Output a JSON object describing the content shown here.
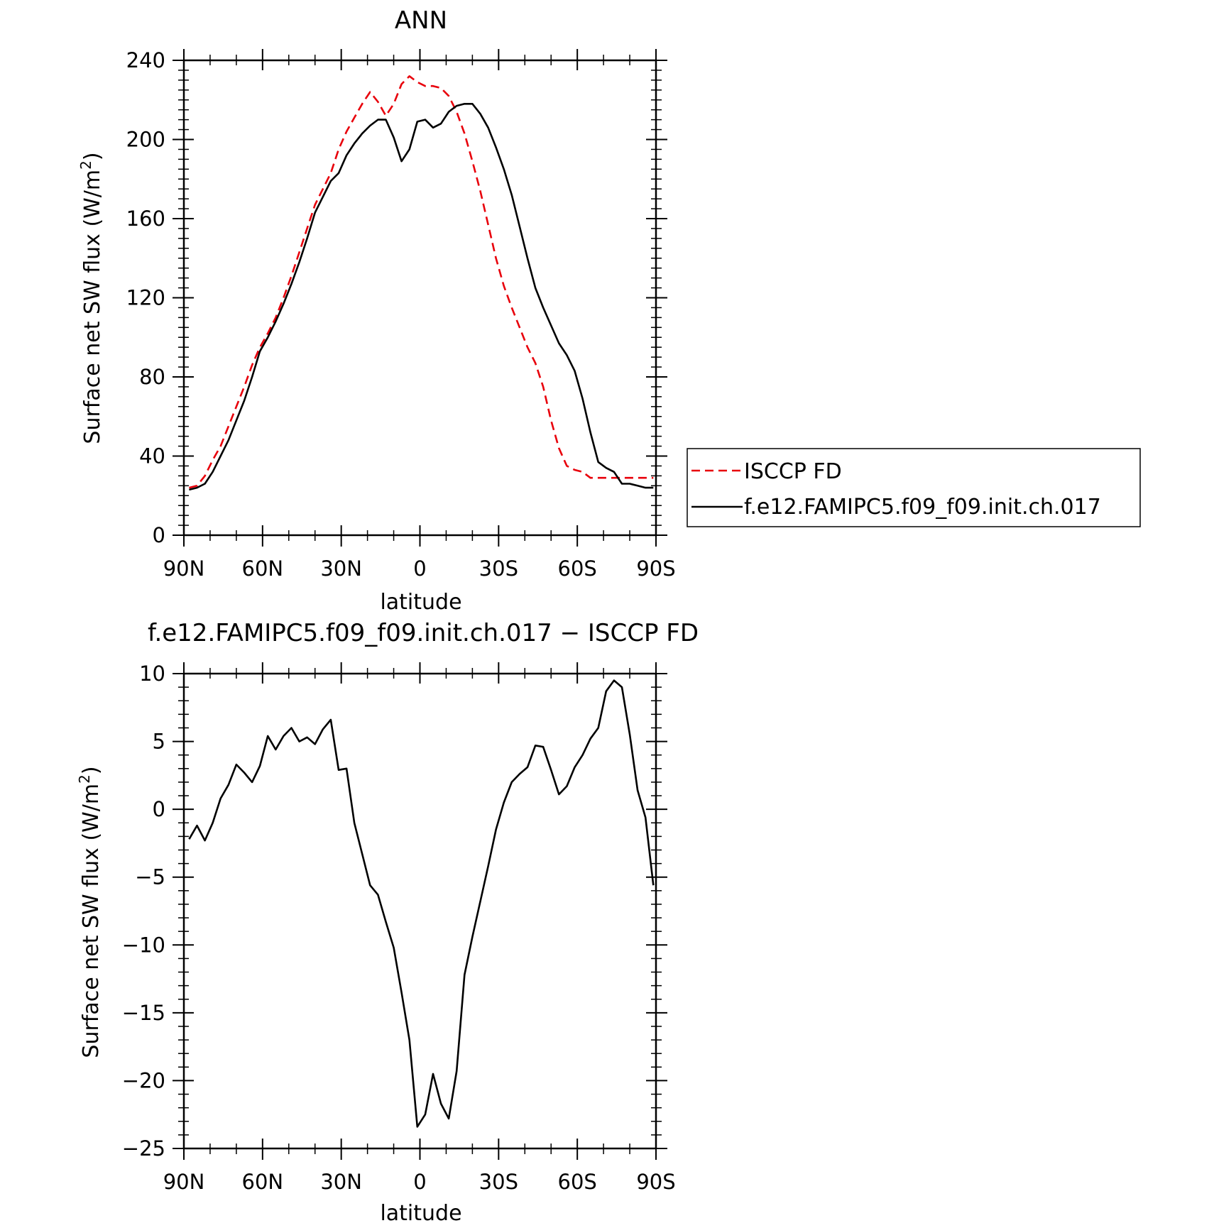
{
  "chart_data": [
    {
      "type": "line",
      "title": "ANN",
      "xlabel": "latitude",
      "ylabel": "Surface net SW flux (W/m",
      "ylabel_sup": "2",
      "ylabel_close": ")",
      "xlim": [
        90,
        -90
      ],
      "ylim": [
        0,
        240
      ],
      "xticks": [
        90,
        60,
        30,
        0,
        -30,
        -60,
        -90
      ],
      "xtick_labels": [
        "90N",
        "60N",
        "30N",
        "0",
        "30S",
        "60S",
        "90S"
      ],
      "yticks": [
        0,
        40,
        80,
        120,
        160,
        200,
        240
      ],
      "ytick_labels": [
        "0",
        "40",
        "80",
        "120",
        "160",
        "200",
        "240"
      ],
      "legend_position": "right",
      "series": [
        {
          "name": "ISCCP FD",
          "color": "#e8000b",
          "dash": "dashed",
          "x": [
            88,
            85,
            82,
            79,
            76,
            73,
            70,
            67,
            64,
            61,
            58,
            55,
            52,
            49,
            46,
            43,
            40,
            37,
            34,
            31,
            28,
            25,
            22,
            19,
            16,
            13,
            10,
            7,
            4,
            1,
            -2,
            -5,
            -8,
            -11,
            -14,
            -17,
            -20,
            -23,
            -26,
            -29,
            -32,
            -35,
            -38,
            -41,
            -44,
            -47,
            -50,
            -53,
            -56,
            -59,
            -62,
            -65,
            -68,
            -71,
            -74,
            -77,
            -80,
            -83,
            -86,
            -89
          ],
          "y": [
            24,
            25,
            30,
            38,
            45,
            55,
            65,
            75,
            86,
            95,
            102,
            110,
            120,
            131,
            143,
            155,
            167,
            175,
            183,
            195,
            204,
            211,
            218,
            224,
            219,
            212,
            218,
            228,
            232,
            229,
            227,
            227,
            226,
            222,
            214,
            203,
            189,
            174,
            157,
            140,
            126,
            115,
            105,
            95,
            87,
            75,
            58,
            44,
            35,
            33,
            32,
            29,
            29,
            29,
            29,
            29,
            29,
            29,
            29,
            29
          ]
        },
        {
          "name": "f.e12.FAMIPC5.f09_f09.init.ch.017",
          "color": "#000000",
          "dash": "solid",
          "x": [
            88,
            85,
            82,
            79,
            76,
            73,
            70,
            67,
            64,
            61,
            58,
            55,
            52,
            49,
            46,
            43,
            40,
            37,
            34,
            31,
            28,
            25,
            22,
            19,
            16,
            13,
            10,
            7,
            4,
            1,
            -2,
            -5,
            -8,
            -11,
            -14,
            -17,
            -20,
            -23,
            -26,
            -29,
            -32,
            -35,
            -38,
            -41,
            -44,
            -47,
            -50,
            -53,
            -56,
            -59,
            -62,
            -65,
            -68,
            -71,
            -74,
            -77,
            -80,
            -83,
            -86,
            -89
          ],
          "y": [
            23,
            24,
            26,
            32,
            40,
            48,
            58,
            68,
            80,
            93,
            100,
            108,
            117,
            127,
            138,
            150,
            163,
            171,
            179,
            183,
            192,
            198,
            203,
            207,
            210,
            210,
            201,
            189,
            195,
            209,
            210,
            206,
            208,
            214,
            217,
            218,
            218,
            213,
            206,
            196,
            185,
            172,
            156,
            140,
            125,
            115,
            106,
            97,
            91,
            83,
            69,
            52,
            37,
            34,
            32,
            26,
            26,
            25,
            24,
            24
          ]
        }
      ]
    },
    {
      "type": "line",
      "title": "f.e12.FAMIPC5.f09_f09.init.ch.017 − ISCCP FD",
      "xlabel": "latitude",
      "ylabel": "Surface net SW flux (W/m",
      "ylabel_sup": "2",
      "ylabel_close": ")",
      "xlim": [
        90,
        -90
      ],
      "ylim": [
        -25,
        10
      ],
      "xticks": [
        90,
        60,
        30,
        0,
        -30,
        -60,
        -90
      ],
      "xtick_labels": [
        "90N",
        "60N",
        "30N",
        "0",
        "30S",
        "60S",
        "90S"
      ],
      "yticks": [
        -25,
        -20,
        -15,
        -10,
        -5,
        0,
        5,
        10
      ],
      "ytick_labels": [
        "−25",
        "−20",
        "−15",
        "−10",
        "−5",
        "0",
        "5",
        "10"
      ],
      "series": [
        {
          "color": "#000000",
          "dash": "solid",
          "x": [
            88,
            85,
            82,
            79,
            76,
            73,
            70,
            67,
            64,
            61,
            58,
            55,
            52,
            49,
            46,
            43,
            40,
            37,
            34,
            31,
            28,
            25,
            22,
            19,
            16,
            13,
            10,
            7,
            4,
            1,
            -2,
            -5,
            -8,
            -11,
            -14,
            -17,
            -20,
            -23,
            -26,
            -29,
            -32,
            -35,
            -38,
            -41,
            -44,
            -47,
            -50,
            -53,
            -56,
            -59,
            -62,
            -65,
            -68,
            -71,
            -74,
            -77,
            -80,
            -83,
            -86,
            -89
          ],
          "y": [
            -2.2,
            -1.2,
            -2.3,
            -1.0,
            0.8,
            1.8,
            3.3,
            2.7,
            2.0,
            3.2,
            5.4,
            4.4,
            5.4,
            6.0,
            5.0,
            5.3,
            4.8,
            5.9,
            6.6,
            2.9,
            3.0,
            -1.0,
            -3.3,
            -5.6,
            -6.3,
            -8.3,
            -10.2,
            -13.5,
            -17.0,
            -23.4,
            -22.5,
            -19.5,
            -21.7,
            -22.8,
            -19.3,
            -12.2,
            -9.4,
            -6.8,
            -4.2,
            -1.5,
            0.5,
            2.0,
            2.6,
            3.1,
            4.7,
            4.6,
            2.9,
            1.1,
            1.7,
            3.1,
            4.0,
            5.2,
            6.0,
            8.7,
            9.5,
            9.0,
            5.5,
            1.4,
            -0.6,
            -5.6
          ]
        }
      ]
    }
  ]
}
